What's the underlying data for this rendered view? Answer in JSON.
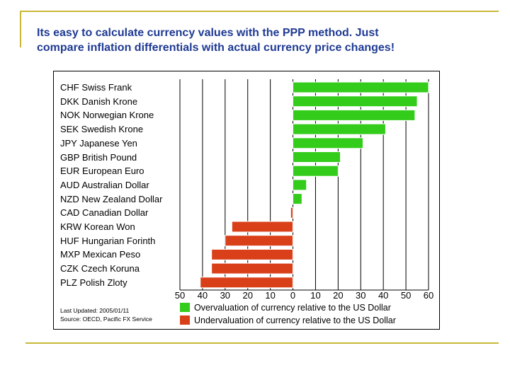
{
  "slide": {
    "title_line1": "Its easy to calculate currency values with the PPP method.  Just",
    "title_line2": "compare inflation differentials with actual currency price changes!"
  },
  "colors": {
    "overvalued": "#33cc1a",
    "undervalued": "#d9401a",
    "accent_rule": "#c8b83a",
    "title": "#1f3a93"
  },
  "chart_data": {
    "type": "bar",
    "orientation": "horizontal",
    "categories": [
      "CHF Swiss Frank",
      "DKK Danish Krone",
      "NOK Norwegian Krone",
      "SEK Swedish Krone",
      "JPY Japanese Yen",
      "GBP British Pound",
      "EUR European Euro",
      "AUD Australian Dollar",
      "NZD New Zealand Dollar",
      "CAD Canadian Dollar",
      "KRW Korean Won",
      "HUF Hungarian Forinth",
      "MXP Mexican Peso",
      "CZK Czech Koruna",
      "PLZ Polish Zloty"
    ],
    "values": [
      60,
      55,
      54,
      41,
      31,
      21,
      20,
      6,
      4,
      -1,
      -27,
      -30,
      -36,
      -36,
      -41
    ],
    "xlim": [
      -50,
      60
    ],
    "xticks": [
      "50",
      "40",
      "30",
      "20",
      "10",
      "0",
      "10",
      "20",
      "30",
      "40",
      "50",
      "60"
    ],
    "grid": "vertical",
    "legend": [
      {
        "label": "Overvaluation of currency relative to the US Dollar",
        "color": "#33cc1a"
      },
      {
        "label": "Undervaluation of currency relative to the US Dollar",
        "color": "#d9401a"
      }
    ],
    "legend_placement": "bottom-right"
  },
  "notes": {
    "updated": "Last Updated: 2005/01/11",
    "source": "Source: OECD, Pacific FX Service"
  }
}
